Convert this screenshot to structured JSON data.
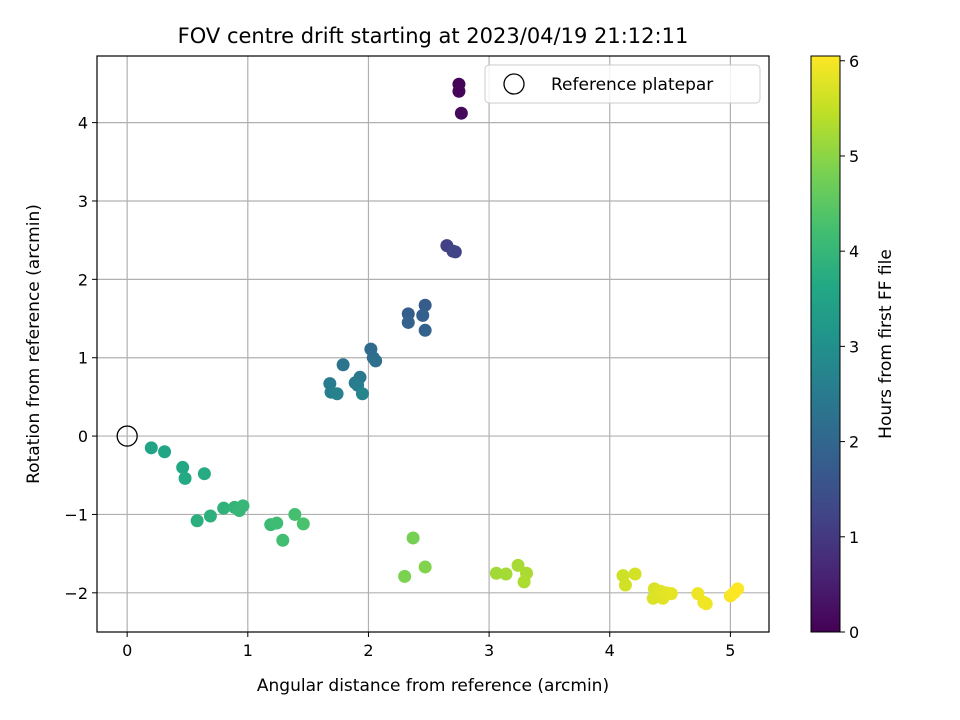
{
  "chart_data": {
    "type": "scatter",
    "title": "FOV centre drift starting at 2023/04/19 21:12:11",
    "xlabel": "Angular distance from reference (arcmin)",
    "ylabel": "Rotation from reference (arcmin)",
    "xlim": [
      -0.25,
      5.32
    ],
    "ylim": [
      -2.5,
      4.85
    ],
    "xticks": [
      0,
      1,
      2,
      3,
      4,
      5
    ],
    "yticks": [
      -2,
      -1,
      0,
      1,
      2,
      3,
      4
    ],
    "grid": true,
    "legend": {
      "placement": "upper right",
      "entries": [
        "Reference platepar"
      ]
    },
    "reference_point": {
      "x": 0,
      "y": 0,
      "label": "Reference platepar"
    },
    "colorbar": {
      "label": "Hours from first FF file",
      "range": [
        0,
        6.05
      ],
      "ticks": [
        0,
        1,
        2,
        3,
        4,
        5,
        6
      ],
      "colormap": "viridis"
    },
    "points": [
      {
        "x": 2.75,
        "y": 4.49,
        "c": 0.05
      },
      {
        "x": 2.75,
        "y": 4.4,
        "c": 0.08
      },
      {
        "x": 2.77,
        "y": 4.12,
        "c": 0.15
      },
      {
        "x": 2.65,
        "y": 2.43,
        "c": 1.15
      },
      {
        "x": 2.7,
        "y": 2.36,
        "c": 1.2
      },
      {
        "x": 2.72,
        "y": 2.35,
        "c": 1.22
      },
      {
        "x": 2.47,
        "y": 1.67,
        "c": 1.75
      },
      {
        "x": 2.33,
        "y": 1.56,
        "c": 1.8
      },
      {
        "x": 2.45,
        "y": 1.54,
        "c": 1.85
      },
      {
        "x": 2.33,
        "y": 1.45,
        "c": 1.88
      },
      {
        "x": 2.47,
        "y": 1.35,
        "c": 1.92
      },
      {
        "x": 2.02,
        "y": 1.11,
        "c": 2.1
      },
      {
        "x": 2.04,
        "y": 1.0,
        "c": 2.15
      },
      {
        "x": 2.06,
        "y": 0.96,
        "c": 2.2
      },
      {
        "x": 1.79,
        "y": 0.91,
        "c": 2.3
      },
      {
        "x": 1.93,
        "y": 0.75,
        "c": 2.4
      },
      {
        "x": 1.89,
        "y": 0.68,
        "c": 2.45
      },
      {
        "x": 1.68,
        "y": 0.67,
        "c": 2.5
      },
      {
        "x": 1.91,
        "y": 0.65,
        "c": 2.55
      },
      {
        "x": 1.69,
        "y": 0.56,
        "c": 2.6
      },
      {
        "x": 1.74,
        "y": 0.54,
        "c": 2.65
      },
      {
        "x": 1.95,
        "y": 0.54,
        "c": 2.7
      },
      {
        "x": 0.2,
        "y": -0.15,
        "c": 3.5
      },
      {
        "x": 0.31,
        "y": -0.2,
        "c": 3.55
      },
      {
        "x": 0.46,
        "y": -0.4,
        "c": 3.6
      },
      {
        "x": 0.48,
        "y": -0.54,
        "c": 3.65
      },
      {
        "x": 0.64,
        "y": -0.48,
        "c": 3.7
      },
      {
        "x": 0.58,
        "y": -1.08,
        "c": 3.8
      },
      {
        "x": 0.69,
        "y": -1.02,
        "c": 3.85
      },
      {
        "x": 0.8,
        "y": -0.92,
        "c": 3.9
      },
      {
        "x": 0.89,
        "y": -0.91,
        "c": 3.95
      },
      {
        "x": 0.96,
        "y": -0.89,
        "c": 4.0
      },
      {
        "x": 0.93,
        "y": -0.95,
        "c": 4.0
      },
      {
        "x": 1.19,
        "y": -1.13,
        "c": 4.1
      },
      {
        "x": 1.24,
        "y": -1.11,
        "c": 4.15
      },
      {
        "x": 1.29,
        "y": -1.33,
        "c": 4.2
      },
      {
        "x": 1.39,
        "y": -1.0,
        "c": 4.25
      },
      {
        "x": 1.46,
        "y": -1.12,
        "c": 4.3
      },
      {
        "x": 2.37,
        "y": -1.3,
        "c": 4.8
      },
      {
        "x": 2.3,
        "y": -1.79,
        "c": 4.85
      },
      {
        "x": 2.47,
        "y": -1.67,
        "c": 4.9
      },
      {
        "x": 3.06,
        "y": -1.75,
        "c": 5.2
      },
      {
        "x": 3.14,
        "y": -1.76,
        "c": 5.22
      },
      {
        "x": 3.24,
        "y": -1.65,
        "c": 5.25
      },
      {
        "x": 3.31,
        "y": -1.75,
        "c": 5.28
      },
      {
        "x": 3.29,
        "y": -1.86,
        "c": 5.3
      },
      {
        "x": 4.11,
        "y": -1.78,
        "c": 5.6
      },
      {
        "x": 4.13,
        "y": -1.9,
        "c": 5.62
      },
      {
        "x": 4.21,
        "y": -1.76,
        "c": 5.65
      },
      {
        "x": 4.37,
        "y": -1.95,
        "c": 5.7
      },
      {
        "x": 4.36,
        "y": -2.07,
        "c": 5.72
      },
      {
        "x": 4.42,
        "y": -1.98,
        "c": 5.75
      },
      {
        "x": 4.44,
        "y": -2.07,
        "c": 5.78
      },
      {
        "x": 4.47,
        "y": -2.0,
        "c": 5.8
      },
      {
        "x": 4.51,
        "y": -2.01,
        "c": 5.82
      },
      {
        "x": 4.73,
        "y": -2.01,
        "c": 5.9
      },
      {
        "x": 4.78,
        "y": -2.12,
        "c": 5.92
      },
      {
        "x": 4.8,
        "y": -2.14,
        "c": 5.94
      },
      {
        "x": 5.0,
        "y": -2.04,
        "c": 6.0
      },
      {
        "x": 5.03,
        "y": -2.0,
        "c": 6.02
      },
      {
        "x": 5.06,
        "y": -1.95,
        "c": 6.05
      }
    ]
  }
}
